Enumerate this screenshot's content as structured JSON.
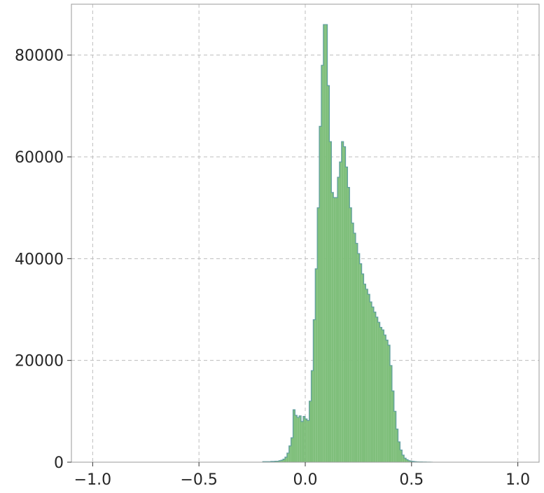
{
  "chart_data": {
    "type": "bar",
    "title": "",
    "xlabel": "",
    "ylabel": "",
    "xlim": [
      -1.1,
      1.1
    ],
    "ylim": [
      0,
      90000
    ],
    "grid": true,
    "legend": "none",
    "colors": {
      "fill": "#7fbf7b",
      "edge": "#5f9ea0",
      "grid": "#bdbdbd",
      "axis": "#999999"
    },
    "x_ticks": [
      {
        "value": -1.0,
        "label": "−1.0"
      },
      {
        "value": -0.5,
        "label": "−0.5"
      },
      {
        "value": 0.0,
        "label": "0.0"
      },
      {
        "value": 0.5,
        "label": "0.5"
      },
      {
        "value": 1.0,
        "label": "1.0"
      }
    ],
    "y_ticks": [
      {
        "value": 0,
        "label": "0"
      },
      {
        "value": 20000,
        "label": "20000"
      },
      {
        "value": 40000,
        "label": "40000"
      },
      {
        "value": 60000,
        "label": "60000"
      },
      {
        "value": 80000,
        "label": "80000"
      }
    ],
    "bin_start": -0.2,
    "bin_width": 0.0095,
    "counts": [
      100,
      100,
      100,
      100,
      150,
      150,
      200,
      200,
      300,
      400,
      600,
      1000,
      1800,
      3200,
      4800,
      10300,
      9200,
      8800,
      9100,
      8000,
      9000,
      8500,
      8200,
      12000,
      18000,
      28000,
      38000,
      50000,
      66000,
      78000,
      86000,
      86000,
      74000,
      63000,
      53000,
      52000,
      52000,
      56000,
      59000,
      63000,
      62000,
      58000,
      54000,
      50000,
      47000,
      45000,
      43000,
      41000,
      39000,
      37000,
      35000,
      34000,
      33000,
      31500,
      30500,
      29500,
      28500,
      27500,
      26500,
      26000,
      25000,
      24000,
      23000,
      19000,
      14000,
      10000,
      6500,
      4000,
      2400,
      1400,
      800,
      500,
      300,
      200,
      150,
      100,
      80,
      60,
      50,
      40,
      30,
      20,
      15,
      10
    ]
  }
}
